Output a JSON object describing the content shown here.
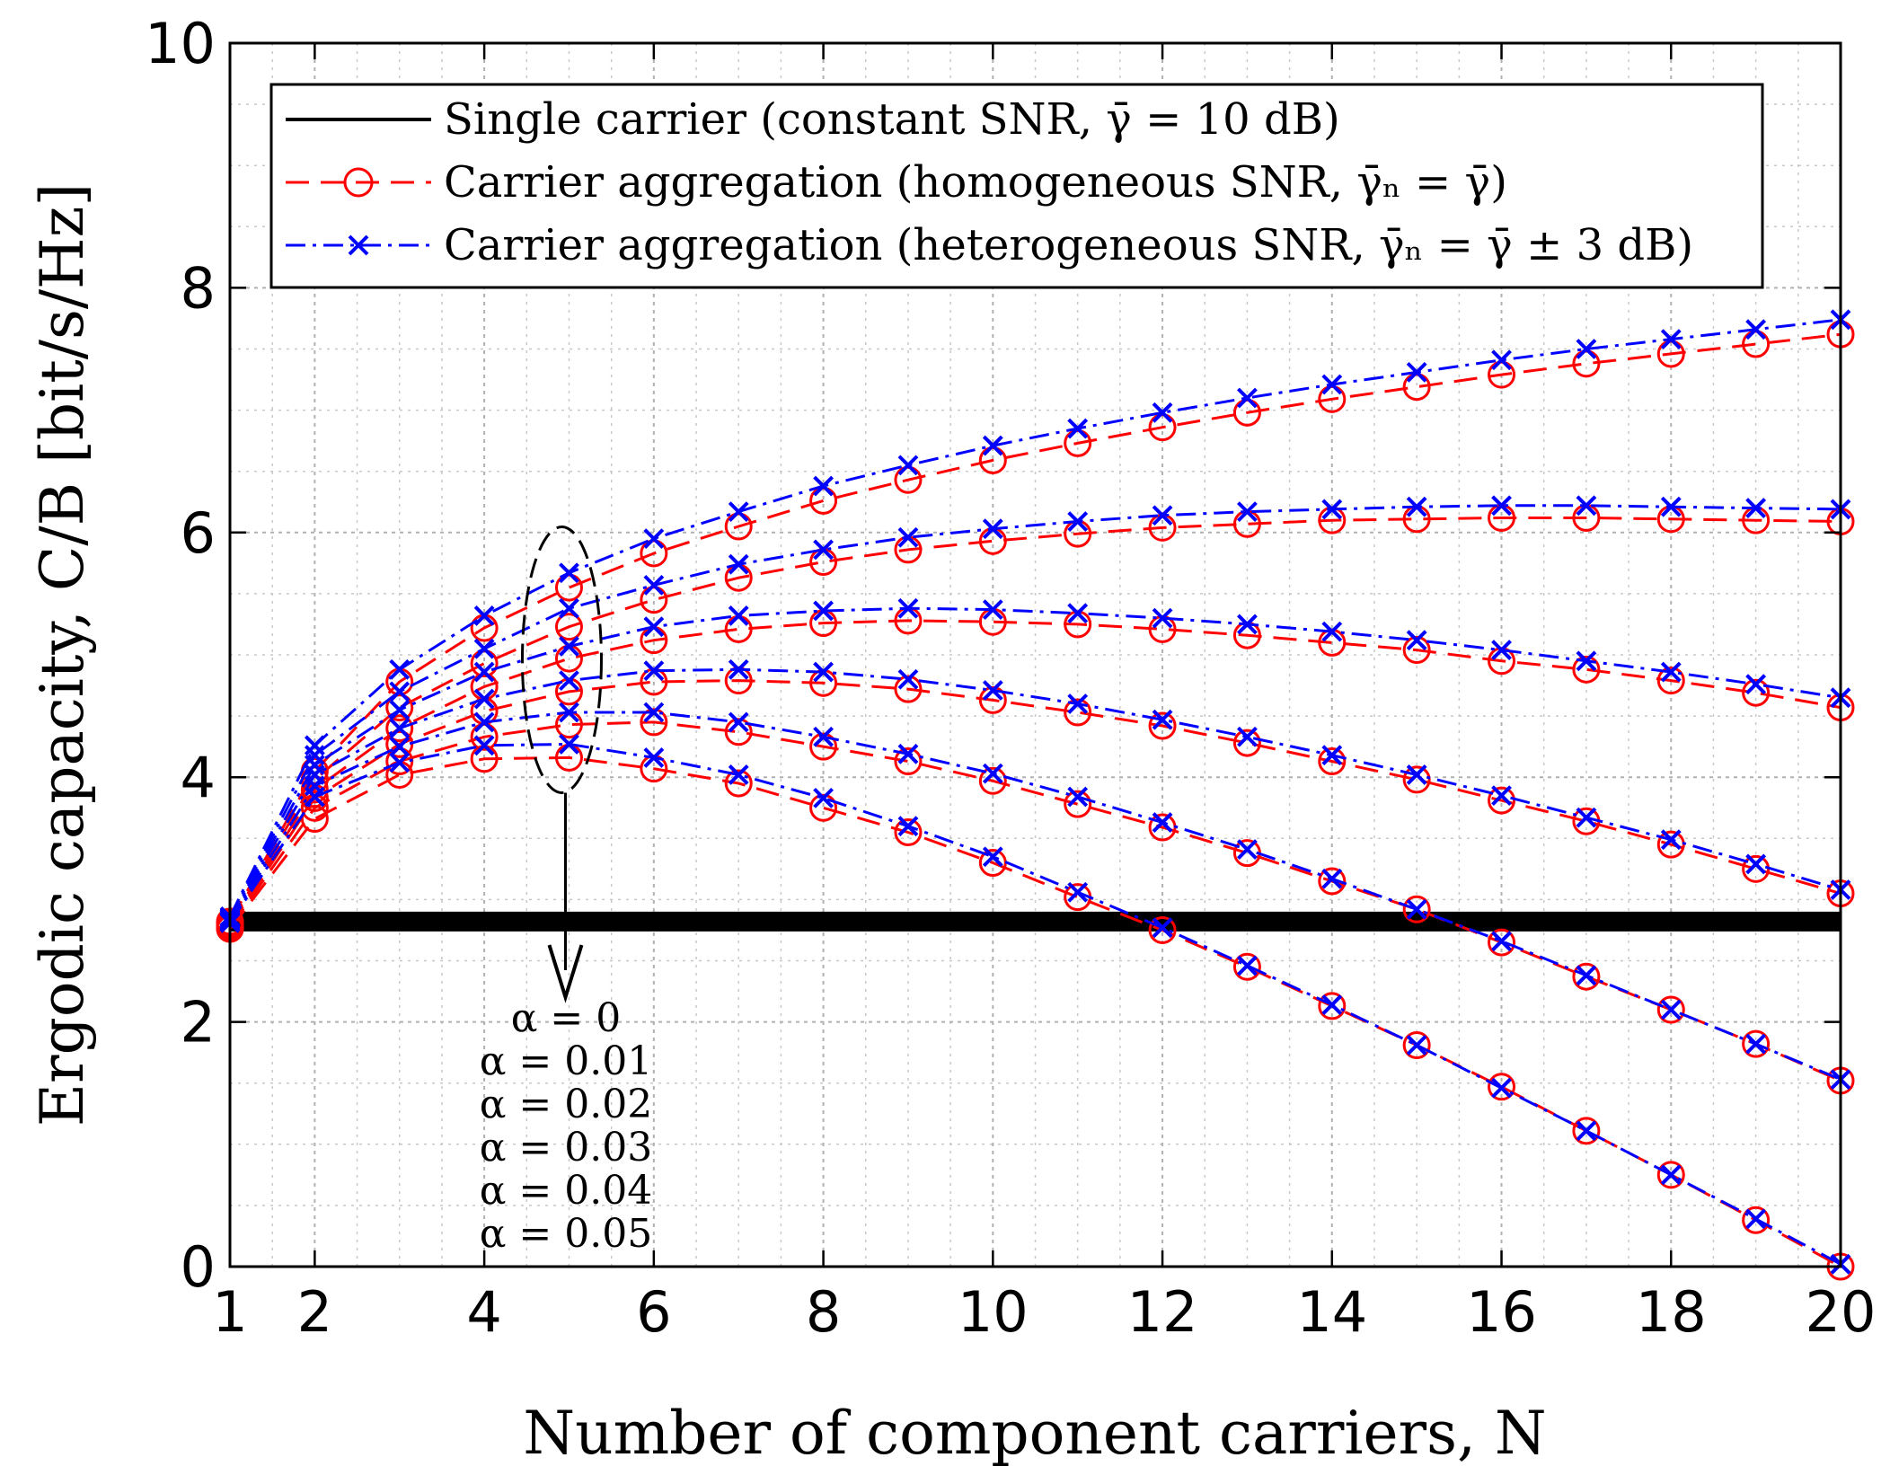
{
  "chart_data": {
    "type": "line",
    "xlabel": "Number of component carriers, N",
    "ylabel": "Ergodic capacity, C/B [bit/s/Hz]",
    "xlim": [
      1,
      20
    ],
    "ylim": [
      0,
      10
    ],
    "xticks": [
      1,
      2,
      4,
      6,
      8,
      10,
      12,
      14,
      16,
      18,
      20
    ],
    "xtick_labels": [
      "1",
      "2",
      "4",
      "6",
      "8",
      "10",
      "12",
      "14",
      "16",
      "18",
      "20"
    ],
    "yticks": [
      0,
      2,
      4,
      6,
      8,
      10
    ],
    "ytick_labels": [
      "0",
      "2",
      "4",
      "6",
      "8",
      "10"
    ],
    "grid": true,
    "legend_position": "top",
    "legend": [
      "Single carrier (constant SNR, γ̄ = 10 dB)",
      "Carrier aggregation (homogeneous SNR, γ̄ₙ = γ̄)",
      "Carrier aggregation (heterogeneous SNR, γ̄ₙ = γ̄ ± 3 dB)"
    ],
    "x": [
      1,
      2,
      3,
      4,
      5,
      6,
      7,
      8,
      9,
      10,
      11,
      12,
      13,
      14,
      15,
      16,
      17,
      18,
      19,
      20
    ],
    "single_carrier": {
      "name": "Single carrier (constant SNR, γ̄ = 10 dB)",
      "value": 2.82,
      "color": "#000000"
    },
    "homogeneous": {
      "name": "Carrier aggregation (homogeneous SNR, γ̄ₙ = γ̄)",
      "color": "#ff0000",
      "series": [
        {
          "alpha": "α = 0",
          "values": [
            2.82,
            4.05,
            4.78,
            5.22,
            5.55,
            5.83,
            6.05,
            6.26,
            6.43,
            6.59,
            6.73,
            6.86,
            6.98,
            7.09,
            7.19,
            7.29,
            7.38,
            7.46,
            7.54,
            7.62
          ]
        },
        {
          "alpha": "α = 0.01",
          "values": [
            2.8,
            3.98,
            4.57,
            4.93,
            5.23,
            5.45,
            5.63,
            5.76,
            5.86,
            5.93,
            5.99,
            6.04,
            6.07,
            6.1,
            6.11,
            6.12,
            6.12,
            6.11,
            6.1,
            6.09
          ]
        },
        {
          "alpha": "α = 0.02",
          "values": [
            2.79,
            3.9,
            4.4,
            4.74,
            4.97,
            5.12,
            5.21,
            5.26,
            5.28,
            5.27,
            5.25,
            5.21,
            5.16,
            5.1,
            5.04,
            4.95,
            4.88,
            4.79,
            4.69,
            4.57
          ]
        },
        {
          "alpha": "α = 0.03",
          "values": [
            2.78,
            3.83,
            4.27,
            4.54,
            4.7,
            4.78,
            4.79,
            4.77,
            4.72,
            4.63,
            4.53,
            4.42,
            4.28,
            4.13,
            3.98,
            3.81,
            3.64,
            3.45,
            3.25,
            3.05
          ]
        },
        {
          "alpha": "α = 0.04",
          "values": [
            2.77,
            3.75,
            4.13,
            4.33,
            4.43,
            4.45,
            4.37,
            4.25,
            4.13,
            3.97,
            3.78,
            3.59,
            3.38,
            3.15,
            2.92,
            2.65,
            2.37,
            2.1,
            1.82,
            1.52
          ]
        },
        {
          "alpha": "α = 0.05",
          "values": [
            2.76,
            3.66,
            4.02,
            4.15,
            4.16,
            4.07,
            3.95,
            3.75,
            3.55,
            3.3,
            3.02,
            2.75,
            2.45,
            2.13,
            1.81,
            1.47,
            1.11,
            0.75,
            0.38,
            0.0
          ]
        }
      ]
    },
    "heterogeneous": {
      "name": "Carrier aggregation (heterogeneous SNR, γ̄ₙ = γ̄ ± 3 dB)",
      "color": "#0000ff",
      "series": [
        {
          "alpha": "α = 0",
          "values": [
            2.86,
            4.26,
            4.88,
            5.32,
            5.67,
            5.95,
            6.17,
            6.38,
            6.55,
            6.71,
            6.85,
            6.98,
            7.1,
            7.21,
            7.31,
            7.41,
            7.5,
            7.58,
            7.66,
            7.74
          ]
        },
        {
          "alpha": "α = 0.01",
          "values": [
            2.85,
            4.18,
            4.7,
            5.05,
            5.38,
            5.57,
            5.74,
            5.86,
            5.96,
            6.03,
            6.09,
            6.14,
            6.17,
            6.19,
            6.21,
            6.22,
            6.22,
            6.21,
            6.2,
            6.19
          ]
        },
        {
          "alpha": "α = 0.02",
          "values": [
            2.84,
            4.1,
            4.55,
            4.86,
            5.07,
            5.23,
            5.32,
            5.36,
            5.38,
            5.37,
            5.34,
            5.3,
            5.25,
            5.19,
            5.12,
            5.04,
            4.95,
            4.86,
            4.76,
            4.65
          ]
        },
        {
          "alpha": "α = 0.03",
          "values": [
            2.83,
            4.02,
            4.4,
            4.64,
            4.79,
            4.87,
            4.88,
            4.86,
            4.8,
            4.71,
            4.6,
            4.47,
            4.33,
            4.18,
            4.02,
            3.85,
            3.67,
            3.49,
            3.29,
            3.08
          ]
        },
        {
          "alpha": "α = 0.04",
          "values": [
            2.82,
            3.93,
            4.25,
            4.45,
            4.53,
            4.53,
            4.45,
            4.33,
            4.19,
            4.03,
            3.84,
            3.63,
            3.41,
            3.17,
            2.92,
            2.66,
            2.38,
            2.1,
            1.82,
            1.53
          ]
        },
        {
          "alpha": "α = 0.05",
          "values": [
            2.81,
            3.84,
            4.12,
            4.26,
            4.27,
            4.16,
            4.02,
            3.83,
            3.6,
            3.35,
            3.06,
            2.77,
            2.46,
            2.14,
            1.81,
            1.46,
            1.11,
            0.75,
            0.39,
            0.02
          ]
        }
      ]
    },
    "annotation": {
      "alpha_labels": [
        "α = 0",
        "α = 0.01",
        "α = 0.02",
        "α = 0.03",
        "α = 0.04",
        "α = 0.05"
      ],
      "ellipse_center_data": [
        5,
        4.96
      ]
    }
  }
}
